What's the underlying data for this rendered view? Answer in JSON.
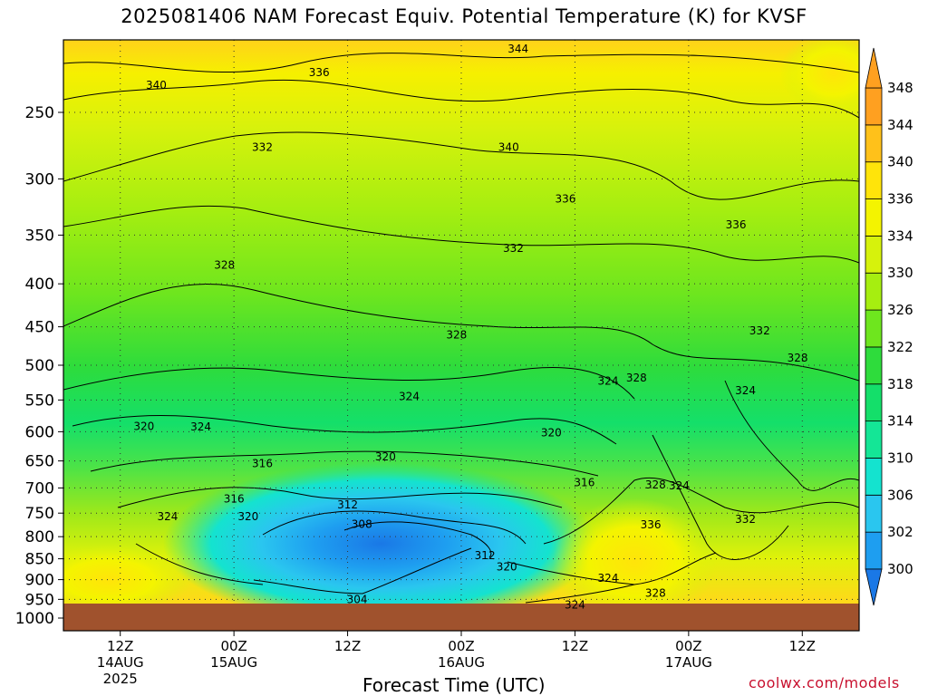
{
  "title": "2025081406 NAM Forecast Equiv. Potential Temperature (K) for KVSF",
  "watermark": "coolwx.com/models",
  "chart_data": {
    "type": "heatmap",
    "title": "2025081406 NAM Forecast Equiv. Potential Temperature (K) for KVSF",
    "xlabel": "Forecast Time (UTC)",
    "ylabel": "",
    "y_axis": {
      "ticks": [
        250,
        300,
        350,
        400,
        450,
        500,
        550,
        600,
        650,
        700,
        750,
        800,
        850,
        900,
        950,
        1000
      ],
      "range": [
        1000,
        200
      ]
    },
    "x_axis": {
      "ticks": [
        {
          "hour": 6,
          "lines": [
            "12Z",
            "14AUG",
            "2025"
          ]
        },
        {
          "hour": 18,
          "lines": [
            "00Z",
            "15AUG"
          ]
        },
        {
          "hour": 30,
          "lines": [
            "12Z"
          ]
        },
        {
          "hour": 42,
          "lines": [
            "00Z",
            "16AUG"
          ]
        },
        {
          "hour": 54,
          "lines": [
            "12Z"
          ]
        },
        {
          "hour": 66,
          "lines": [
            "00Z",
            "17AUG"
          ]
        },
        {
          "hour": 78,
          "lines": [
            "12Z"
          ]
        }
      ],
      "range": [
        0,
        84
      ]
    },
    "colorbar": {
      "levels": [
        300,
        302,
        306,
        310,
        314,
        318,
        322,
        326,
        330,
        334,
        336,
        340,
        344,
        348
      ],
      "colors": [
        "#1a78e6",
        "#1e9ef0",
        "#2ac6ef",
        "#14e3cf",
        "#14e696",
        "#14df6a",
        "#2edc3c",
        "#6ee61e",
        "#a6ee10",
        "#d6f20c",
        "#f4f400",
        "#ffe40a",
        "#ffc11a",
        "#ffa020"
      ]
    },
    "contour_labels": [
      {
        "value": 344,
        "hour": 48.0,
        "p": 210
      },
      {
        "value": 340,
        "hour": 9.8,
        "p": 232
      },
      {
        "value": 336,
        "hour": 27.0,
        "p": 224
      },
      {
        "value": 340,
        "hour": 47.0,
        "p": 275
      },
      {
        "value": 332,
        "hour": 21.0,
        "p": 275
      },
      {
        "value": 336,
        "hour": 53.0,
        "p": 317
      },
      {
        "value": 336,
        "hour": 71.0,
        "p": 340
      },
      {
        "value": 332,
        "hour": 47.5,
        "p": 363
      },
      {
        "value": 328,
        "hour": 17.0,
        "p": 380
      },
      {
        "value": 328,
        "hour": 41.5,
        "p": 460
      },
      {
        "value": 332,
        "hour": 73.5,
        "p": 455
      },
      {
        "value": 328,
        "hour": 77.5,
        "p": 490
      },
      {
        "value": 324,
        "hour": 57.5,
        "p": 522
      },
      {
        "value": 328,
        "hour": 60.5,
        "p": 518
      },
      {
        "value": 324,
        "hour": 36.5,
        "p": 545
      },
      {
        "value": 324,
        "hour": 72.0,
        "p": 536
      },
      {
        "value": 320,
        "hour": 8.5,
        "p": 591
      },
      {
        "value": 324,
        "hour": 14.5,
        "p": 592
      },
      {
        "value": 320,
        "hour": 51.5,
        "p": 602
      },
      {
        "value": 320,
        "hour": 34.0,
        "p": 643
      },
      {
        "value": 316,
        "hour": 21.0,
        "p": 655
      },
      {
        "value": 316,
        "hour": 55.0,
        "p": 690
      },
      {
        "value": 328,
        "hour": 62.5,
        "p": 694
      },
      {
        "value": 324,
        "hour": 65.0,
        "p": 696
      },
      {
        "value": 316,
        "hour": 18.0,
        "p": 721
      },
      {
        "value": 312,
        "hour": 30.0,
        "p": 733
      },
      {
        "value": 324,
        "hour": 11.0,
        "p": 757
      },
      {
        "value": 320,
        "hour": 19.5,
        "p": 757
      },
      {
        "value": 308,
        "hour": 31.5,
        "p": 773
      },
      {
        "value": 332,
        "hour": 72.0,
        "p": 763
      },
      {
        "value": 336,
        "hour": 62.0,
        "p": 774
      },
      {
        "value": 312,
        "hour": 44.5,
        "p": 842
      },
      {
        "value": 320,
        "hour": 46.8,
        "p": 869
      },
      {
        "value": 324,
        "hour": 57.5,
        "p": 896
      },
      {
        "value": 328,
        "hour": 62.5,
        "p": 934
      },
      {
        "value": 304,
        "hour": 31.0,
        "p": 950
      },
      {
        "value": 324,
        "hour": 54.0,
        "p": 965
      }
    ]
  }
}
